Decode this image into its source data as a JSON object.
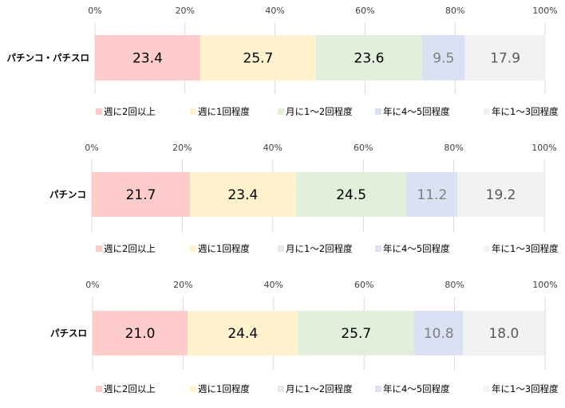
{
  "chart_data": [
    {
      "type": "bar",
      "orientation": "horizontal",
      "stacked": "percent",
      "category": "パチンコ・パチスロ",
      "xticks": [
        "0%",
        "20%",
        "40%",
        "60%",
        "80%",
        "100%"
      ],
      "xlim": [
        0,
        100
      ],
      "grid": true,
      "legend_position": "bottom",
      "series": [
        {
          "name": "週に2回以上",
          "value": 23.4,
          "label": "23.4"
        },
        {
          "name": "週に1回程度",
          "value": 25.7,
          "label": "25.7"
        },
        {
          "name": "月に1～2回程度",
          "value": 23.6,
          "label": "23.6"
        },
        {
          "name": "年に4～5回程度",
          "value": 9.5,
          "label": "9.5"
        },
        {
          "name": "年に1～3回程度",
          "value": 17.9,
          "label": "17.9"
        }
      ]
    },
    {
      "type": "bar",
      "orientation": "horizontal",
      "stacked": "percent",
      "category": "パチンコ",
      "xticks": [
        "0%",
        "20%",
        "40%",
        "60%",
        "80%",
        "100%"
      ],
      "xlim": [
        0,
        100
      ],
      "grid": true,
      "legend_position": "bottom",
      "series": [
        {
          "name": "週に2回以上",
          "value": 21.7,
          "label": "21.7"
        },
        {
          "name": "週に1回程度",
          "value": 23.4,
          "label": "23.4"
        },
        {
          "name": "月に1～2回程度",
          "value": 24.5,
          "label": "24.5"
        },
        {
          "name": "年に4～5回程度",
          "value": 11.2,
          "label": "11.2"
        },
        {
          "name": "年に1～3回程度",
          "value": 19.2,
          "label": "19.2"
        }
      ]
    },
    {
      "type": "bar",
      "orientation": "horizontal",
      "stacked": "percent",
      "category": "パチスロ",
      "xticks": [
        "0%",
        "20%",
        "40%",
        "60%",
        "80%",
        "100%"
      ],
      "xlim": [
        0,
        100
      ],
      "grid": true,
      "legend_position": "bottom",
      "series": [
        {
          "name": "週に2回以上",
          "value": 21.0,
          "label": "21.0"
        },
        {
          "name": "週に1回程度",
          "value": 24.4,
          "label": "24.4"
        },
        {
          "name": "月に1～2回程度",
          "value": 25.7,
          "label": "25.7"
        },
        {
          "name": "年に4～5回程度",
          "value": 10.8,
          "label": "10.8"
        },
        {
          "name": "年に1～3回程度",
          "value": 18.0,
          "label": "18.0"
        }
      ]
    }
  ],
  "colors": {
    "segments": [
      "#ffcccc",
      "#fff2cc",
      "#e2efda",
      "#d9e1f2",
      "#f2f2f2"
    ],
    "value_text": [
      "#000000",
      "#000000",
      "#000000",
      "#7f7f7f",
      "#595959"
    ]
  }
}
